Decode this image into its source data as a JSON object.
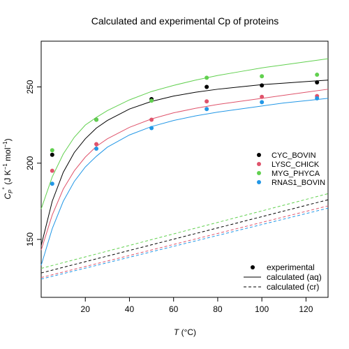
{
  "chart_data": {
    "type": "line",
    "title": "Calculated and experimental Cp of proteins",
    "xlabel": {
      "italic": "T",
      "rest": " (°C)"
    },
    "ylabel": {
      "main": "C",
      "sub": "P",
      "sup": "°",
      "unit_pre": " (J K",
      "unit_sup1": "−1",
      "unit_mid": " mol",
      "unit_sup2": "−1",
      "unit_post": ")"
    },
    "xlim": [
      0,
      130
    ],
    "ylim": [
      112,
      280
    ],
    "xticks": [
      20,
      40,
      60,
      80,
      100,
      120
    ],
    "yticks": [
      150,
      200,
      250
    ],
    "colors": {
      "CYC_BOVIN": "#000000",
      "LYSC_CHICK": "#DF536B",
      "MYG_PHYCA": "#61D04F",
      "RNAS1_BOVIN": "#2297E6"
    },
    "series": [
      {
        "name": "CYC_BOVIN",
        "experimental": {
          "x": [
            5,
            25,
            50,
            75,
            100,
            125
          ],
          "y": [
            205.5,
            228.5,
            242,
            250,
            251,
            253
          ]
        },
        "calculated_aq": {
          "x": [
            0,
            5,
            10,
            15,
            20,
            25,
            30,
            40,
            50,
            60,
            70,
            80,
            90,
            100,
            110,
            120,
            130
          ],
          "y": [
            146,
            175,
            194,
            207,
            216,
            223,
            228,
            235.5,
            240.5,
            244,
            246.5,
            248.5,
            250,
            251.5,
            252.5,
            253.5,
            254.5
          ]
        },
        "calculated_cr": {
          "x": [
            0,
            130
          ],
          "y": [
            128,
            176
          ]
        }
      },
      {
        "name": "LYSC_CHICK",
        "experimental": {
          "x": [
            5,
            25,
            50,
            75,
            100,
            125
          ],
          "y": [
            195,
            212.5,
            228.5,
            240.5,
            243.5,
            244
          ]
        },
        "calculated_aq": {
          "x": [
            0,
            5,
            10,
            15,
            20,
            25,
            30,
            40,
            50,
            60,
            70,
            80,
            90,
            100,
            110,
            120,
            130
          ],
          "y": [
            143,
            166,
            183,
            195,
            204,
            211,
            216,
            223.5,
            229,
            233,
            236,
            238.5,
            240.5,
            242.5,
            244.5,
            246.5,
            248.5
          ]
        },
        "calculated_cr": {
          "x": [
            0,
            130
          ],
          "y": [
            125,
            172
          ]
        }
      },
      {
        "name": "MYG_PHYCA",
        "experimental": {
          "x": [
            5,
            25,
            50,
            75,
            100,
            125
          ],
          "y": [
            208.5,
            228.5,
            241,
            256,
            257,
            258
          ]
        },
        "calculated_aq": {
          "x": [
            0,
            5,
            10,
            15,
            20,
            25,
            30,
            40,
            50,
            60,
            70,
            80,
            90,
            100,
            110,
            120,
            130
          ],
          "y": [
            170,
            191,
            206,
            217,
            225,
            230,
            234.5,
            241.5,
            247,
            251,
            254.5,
            257.5,
            260,
            262.5,
            264.5,
            266.5,
            268.5
          ]
        },
        "calculated_cr": {
          "x": [
            0,
            130
          ],
          "y": [
            131,
            180
          ]
        }
      },
      {
        "name": "RNAS1_BOVIN",
        "experimental": {
          "x": [
            5,
            25,
            50,
            75,
            100,
            125
          ],
          "y": [
            186.5,
            209.5,
            223,
            235.5,
            240,
            242.5
          ]
        },
        "calculated_aq": {
          "x": [
            0,
            5,
            10,
            15,
            20,
            25,
            30,
            40,
            50,
            60,
            70,
            80,
            90,
            100,
            110,
            120,
            130
          ],
          "y": [
            133,
            157,
            175,
            188,
            197.5,
            204.5,
            210.5,
            218.5,
            224,
            228,
            231,
            233.5,
            235.5,
            237.5,
            239.5,
            241,
            242.5
          ]
        },
        "calculated_cr": {
          "x": [
            0,
            130
          ],
          "y": [
            124,
            170.5
          ]
        }
      }
    ],
    "legend_series": {
      "position": "center-right",
      "items": [
        "CYC_BOVIN",
        "LYSC_CHICK",
        "MYG_PHYCA",
        "RNAS1_BOVIN"
      ]
    },
    "legend_type": {
      "position": "bottom-right",
      "items": [
        "experimental",
        "calculated (aq)",
        "calculated (cr)"
      ]
    }
  }
}
